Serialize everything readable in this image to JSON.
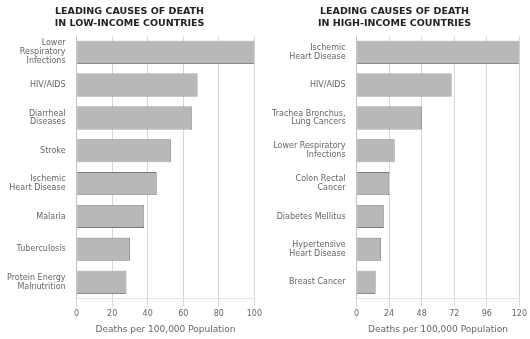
{
  "chart_data": [
    {
      "type": "bar",
      "orientation": "horizontal",
      "title": "LEADING CAUSES OF DEATH\nIN LOW-INCOME COUNTRIES",
      "categories": [
        "Protein Energy\nMalnutrition",
        "Tuberculosis",
        "Malaria",
        "Ischemic\nHeart Disease",
        "Stroke",
        "Diarrheal\nDiseases",
        "HIV/AIDS",
        "Lower\nRespiratory\nInfections"
      ],
      "values": [
        28,
        30,
        38,
        45,
        53,
        65,
        68,
        100
      ],
      "color": "#b8b8b8",
      "xlim": [
        0,
        100
      ],
      "xticks": [
        0,
        20,
        40,
        60,
        80,
        100
      ],
      "xlabel": "Deaths per 100,000 Population",
      "grid": true
    },
    {
      "type": "bar",
      "orientation": "horizontal",
      "title": "LEADING CAUSES OF DEATH\nIN HIGH-INCOME COUNTRIES",
      "categories": [
        "Breast Cancer",
        "Hypertensive\nHeart Disease",
        "Diabetes Mellitus",
        "Colon Rectal\nCancer",
        "Lower Respiratory\nInfections",
        "Trachea Bronchus,\nLung Cancers",
        "HIV/AIDS",
        "Ischemic\nHeart Disease"
      ],
      "values": [
        14,
        18,
        20,
        24,
        28,
        48,
        70,
        120
      ],
      "color": "#b8b8b8",
      "xlim": [
        0,
        120
      ],
      "xticks": [
        0,
        24,
        48,
        72,
        96,
        120
      ],
      "xlabel": "Deaths per 100,000 Population",
      "grid": true
    }
  ]
}
